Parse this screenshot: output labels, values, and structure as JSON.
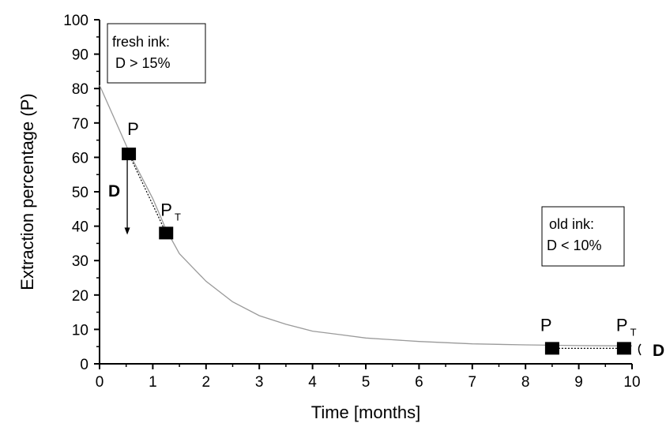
{
  "chart_data": {
    "type": "scatter",
    "xlabel": "Time [months]",
    "ylabel": "Extraction percentage (P)",
    "xlim": [
      0,
      10
    ],
    "ylim": [
      0,
      100
    ],
    "x_ticks": [
      "0",
      "1",
      "2",
      "3",
      "4",
      "5",
      "6",
      "7",
      "8",
      "9",
      "10"
    ],
    "y_ticks": [
      "0",
      "10",
      "20",
      "30",
      "40",
      "50",
      "60",
      "70",
      "80",
      "90",
      "100"
    ],
    "curve": {
      "x": [
        0,
        0.2,
        0.4,
        0.6,
        0.8,
        1.0,
        1.25,
        1.5,
        1.75,
        2.0,
        2.5,
        3.0,
        3.5,
        4.0,
        4.5,
        5.0,
        5.5,
        6.0,
        7.0,
        8.0,
        9.0,
        10.0
      ],
      "y": [
        81,
        74,
        67,
        60,
        54,
        48,
        39,
        32,
        28,
        24,
        18,
        14,
        11.5,
        9.5,
        8.5,
        7.5,
        7,
        6.5,
        5.8,
        5.5,
        5.3,
        5.2
      ]
    },
    "points": [
      {
        "x": 0.55,
        "y": 61,
        "label": "P",
        "sub": ""
      },
      {
        "x": 1.25,
        "y": 38,
        "label": "P",
        "sub": "T"
      },
      {
        "x": 8.5,
        "y": 4.5,
        "label": "P",
        "sub": ""
      },
      {
        "x": 9.85,
        "y": 4.5,
        "label": "P",
        "sub": "T"
      }
    ],
    "annotations": {
      "fresh_line1": "fresh ink:",
      "fresh_line2": "D > 15%",
      "old_line1": "old ink:",
      "old_line2": "D < 10%",
      "d_label_left": "D",
      "d_label_right": "D"
    },
    "colors": {
      "curve": "#9a9a9a",
      "marker": "#000000",
      "axis": "#000000"
    }
  }
}
